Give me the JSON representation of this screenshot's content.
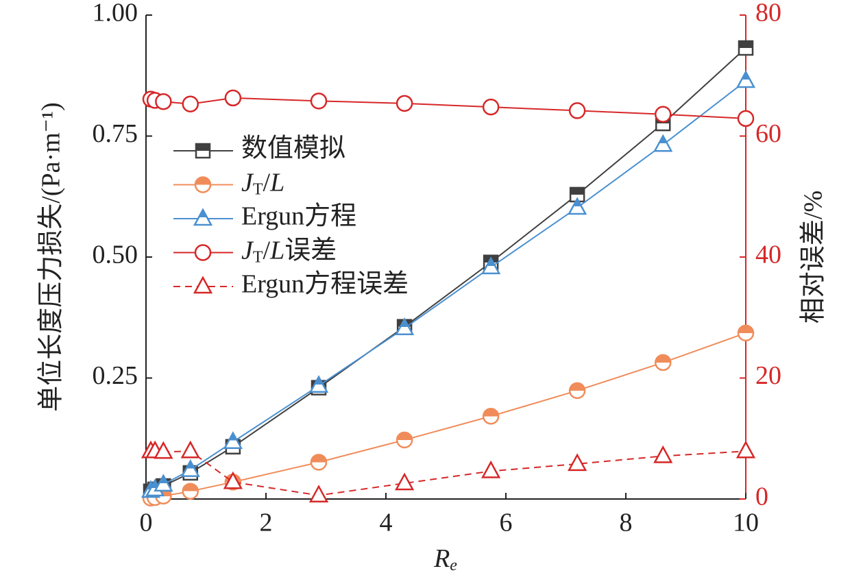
{
  "chart_data": {
    "type": "line",
    "x_label": "Re",
    "y_label": "单位长度压力损失/(Pa·m⁻¹)",
    "y2_label": "相对误差/%",
    "x": [
      0.08,
      0.15,
      0.29,
      0.74,
      1.45,
      2.88,
      4.31,
      5.75,
      7.19,
      8.62,
      10
    ],
    "xlim": [
      0,
      10
    ],
    "xticks": [
      0,
      2,
      4,
      6,
      8,
      10
    ],
    "ylim": [
      0,
      1
    ],
    "yticks": [
      {
        "value": 0.25,
        "label": "0.25"
      },
      {
        "value": 0.5,
        "label": "0.50"
      },
      {
        "value": 0.75,
        "label": "0.75"
      },
      {
        "value": 1,
        "label": "1.00"
      }
    ],
    "y2lim": [
      0,
      80
    ],
    "y2ticks": [
      0,
      20,
      40,
      60,
      80
    ],
    "series": [
      {
        "name": "数值模拟",
        "color": "#404040",
        "marker": "square",
        "values": [
          0.016,
          0.02,
          0.027,
          0.054,
          0.108,
          0.23,
          0.356,
          0.489,
          0.629,
          0.776,
          0.932
        ]
      },
      {
        "name": "JT/L",
        "color": "#f08c5a",
        "marker": "circle",
        "values": [
          0.002,
          0.003,
          0.006,
          0.016,
          0.035,
          0.076,
          0.122,
          0.171,
          0.224,
          0.282,
          0.343
        ]
      },
      {
        "name": "Ergun方程",
        "color": "#4a90d0",
        "marker": "triangle",
        "values": [
          0.017,
          0.02,
          0.03,
          0.06,
          0.118,
          0.234,
          0.353,
          0.479,
          0.602,
          0.732,
          0.864
        ]
      },
      {
        "name": "JT/L误差",
        "color": "#d62728",
        "marker": "circle-open",
        "axis": "y2",
        "values": [
          66.1,
          65.9,
          65.7,
          65.3,
          66.3,
          65.8,
          65.4,
          64.8,
          64.2,
          63.6,
          62.9
        ]
      },
      {
        "name": "Ergun方程误差",
        "color": "#d62728",
        "marker": "triangle-open",
        "dashed": true,
        "axis": "y2",
        "values": [
          7.9,
          7.9,
          7.8,
          7.9,
          2.8,
          0.6,
          2.6,
          4.6,
          5.8,
          7.1,
          7.9
        ]
      }
    ]
  }
}
